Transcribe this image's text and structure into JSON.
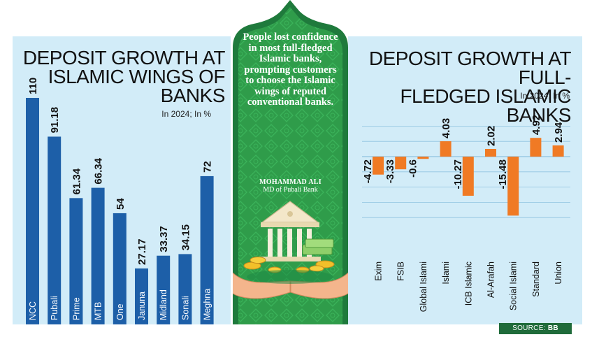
{
  "left_chart": {
    "title_lines": [
      "DEPOSIT GROWTH AT",
      "ISLAMIC WINGS OF",
      "BANKS"
    ],
    "subtitle": "In 2024; In %"
  },
  "right_chart": {
    "title_lines": [
      "DEPOSIT GROWTH AT FULL-",
      "FLEDGED ISLAMIC BANKS"
    ],
    "subtitle": "In 2024; In %"
  },
  "quote": {
    "text": "People lost confidence in most full-fledged Islamic banks, prompting customers to choose the Islamic wings of reputed conventional banks.",
    "author_name": "MOHAMMAD ALI",
    "author_role": "MD of Pubali Bank"
  },
  "source": {
    "label": "SOURCE:",
    "value": "BB"
  },
  "colors": {
    "panel_bg": "#d2ecf8",
    "left_bar": "#1d5fa8",
    "right_bar": "#f07a24",
    "green_dark": "#1f7a3c",
    "green_light": "#2fa84f"
  },
  "chart_data": [
    {
      "type": "bar",
      "orientation": "vertical",
      "title": "DEPOSIT GROWTH AT ISLAMIC WINGS OF BANKS",
      "subtitle": "In 2024; In %",
      "categories": [
        "NCC",
        "Pubali",
        "Prime",
        "MTB",
        "One",
        "Januna",
        "Midland",
        "Sonali",
        "Meghna"
      ],
      "values": [
        110,
        91.18,
        61.34,
        66.34,
        54,
        27.17,
        33.37,
        34.15,
        72
      ],
      "value_labels": [
        "110",
        "91.18",
        "61.34",
        "66.34",
        "54",
        "27.17",
        "33.37",
        "34.15",
        "72"
      ],
      "ylim": [
        0,
        110
      ],
      "grid": false,
      "legend": "none"
    },
    {
      "type": "bar",
      "orientation": "vertical",
      "title": "DEPOSIT GROWTH AT FULL-FLEDGED ISLAMIC BANKS",
      "subtitle": "In 2024; In %",
      "categories": [
        "Exim",
        "FSIB",
        "Global Islami",
        "Islami",
        "ICB Islamic",
        "Al-Arafah",
        "Social Islami",
        "Standard",
        "Union"
      ],
      "values": [
        -4.72,
        -3.33,
        -0.6,
        4.03,
        -10.27,
        2.02,
        -15.48,
        4.92,
        2.94
      ],
      "value_labels": [
        "-4.72",
        "-3.33",
        "-0.6",
        "4.03",
        "-10.27",
        "2.02",
        "-15.48",
        "4.92",
        "2.94"
      ],
      "ylim": [
        -16,
        9
      ],
      "grid": true,
      "legend": "none"
    }
  ]
}
